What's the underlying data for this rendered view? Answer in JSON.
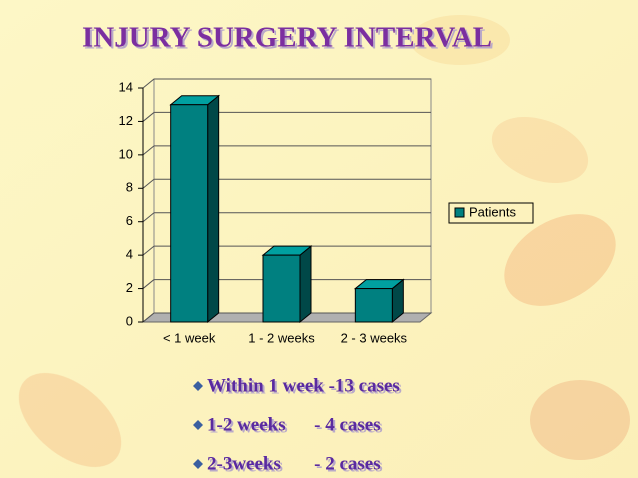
{
  "chart_data": {
    "type": "bar3d",
    "title": "INJURY SURGERY INTERVAL",
    "categories": [
      "< 1 week",
      "1 - 2 weeks",
      "2 - 3 weeks"
    ],
    "series": [
      {
        "name": "Patients",
        "color": "#008080",
        "values": [
          13,
          4,
          2
        ]
      }
    ],
    "ylim": [
      0,
      14
    ],
    "yticks": [
      0,
      2,
      4,
      6,
      8,
      10,
      12,
      14
    ],
    "grid": true,
    "legend": "right"
  },
  "bullets": [
    "Within 1 week -13 cases",
    "1-2 weeks      - 4 cases",
    "2-3weeks       - 2 cases"
  ]
}
